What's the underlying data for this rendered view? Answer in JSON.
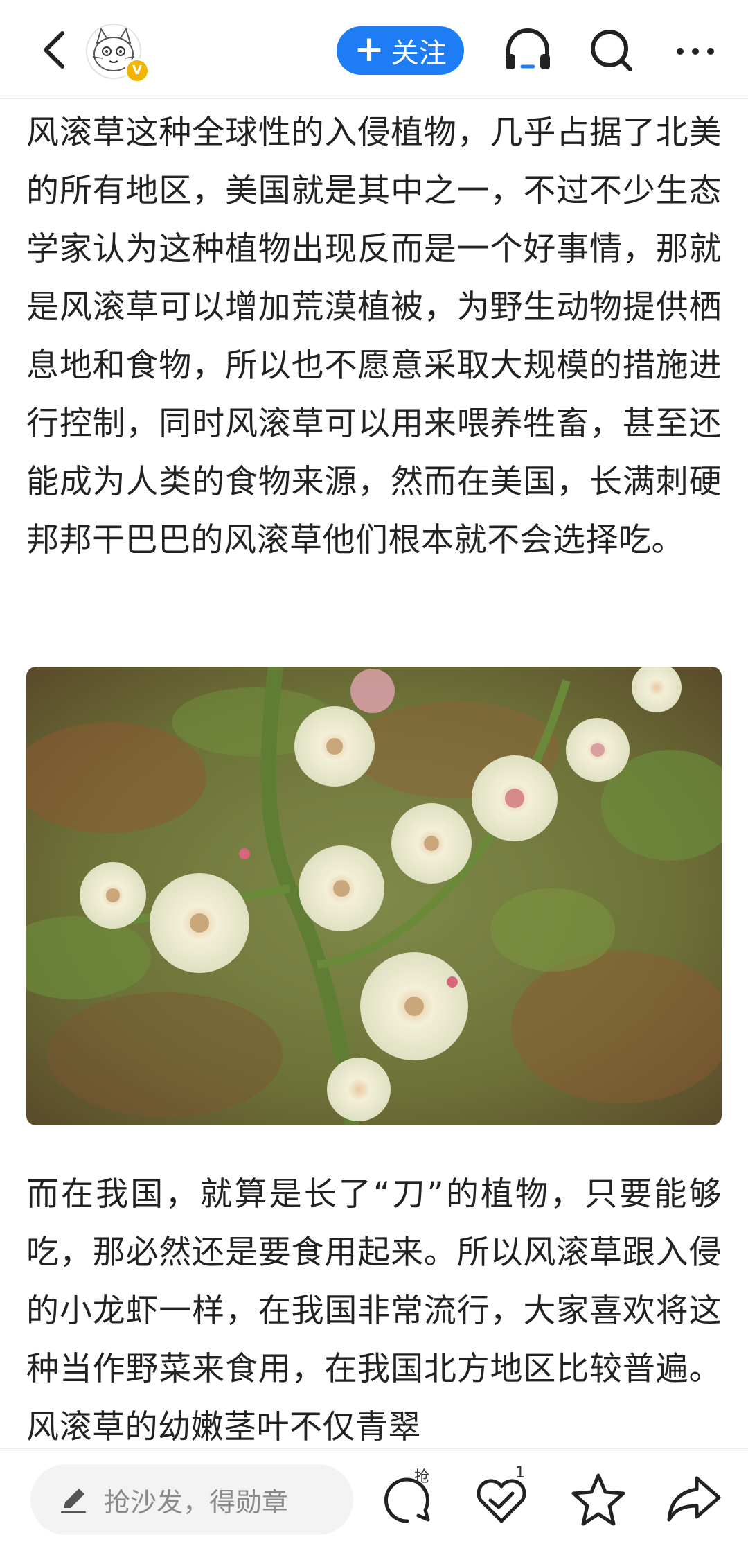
{
  "header": {
    "back_icon": "chevron-left-icon",
    "avatar_icon": "cat-avatar-icon",
    "verified_mark": "V",
    "follow_label": "关注",
    "follow_plus": "+",
    "listen_icon": "headphones-icon",
    "search_icon": "search-icon",
    "more_icon": "more-dots-icon",
    "accent_color": "#1e7cf5"
  },
  "article": {
    "paragraph_1": "风滚草这种全球性的入侵植物，几乎占据了北美的所有地区，美国就是其中之一，不过不少生态学家认为这种植物出现反而是一个好事情，那就是风滚草可以增加荒漠植被，为野生动物提供栖息地和食物，所以也不愿意采取大规模的措施进行控制，同时风滚草可以用来喂养牲畜，甚至还能成为人类的食物来源，然而在美国，长满刺硬邦邦干巴巴的风滚草他们根本就不会选择吃。",
    "paragraph_2": "而在我国，就算是长了“刀”的植物，只要能够吃，那必然还是要食用起来。所以风滚草跟入侵的小龙虾一样，在我国非常流行，大家喜欢将这种当作野菜来食用，在我国北方地区比较普遍。风滚草的幼嫩茎叶不仅青翠"
  },
  "bottom_bar": {
    "comment_placeholder": "抢沙发，得勋章",
    "comment_badge": "抢",
    "like_count": "1",
    "edit_icon": "pencil-icon",
    "comment_icon": "comment-bubble-icon",
    "like_icon": "thumbs-up-heart-icon",
    "favorite_icon": "star-icon",
    "share_icon": "share-arrow-icon"
  }
}
